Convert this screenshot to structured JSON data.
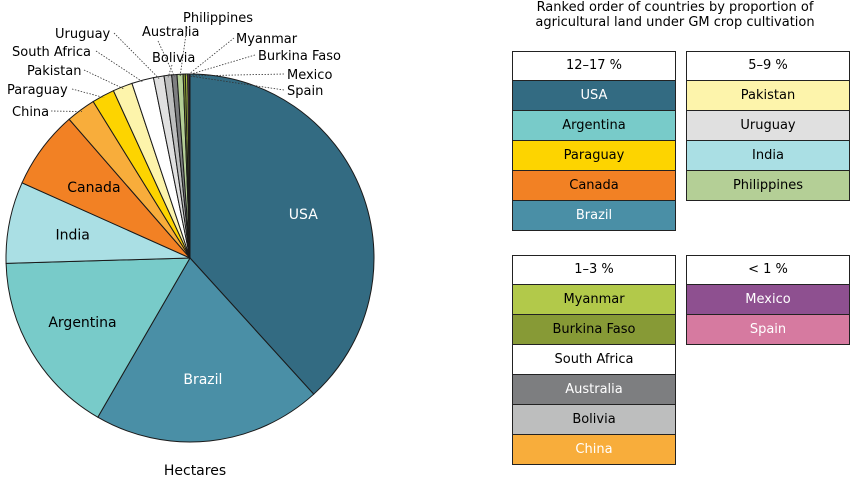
{
  "chart_data": {
    "type": "pie",
    "caption": "Hectares",
    "slices": [
      {
        "label": "USA",
        "value": 57.7,
        "color": "#336b82"
      },
      {
        "label": "Brazil",
        "value": 30.3,
        "color": "#4a8fa6"
      },
      {
        "label": "Argentina",
        "value": 24.4,
        "color": "#78cbc9"
      },
      {
        "label": "India",
        "value": 10.8,
        "color": "#aadfe4"
      },
      {
        "label": "Canada",
        "value": 10.4,
        "color": "#f28124"
      },
      {
        "label": "China",
        "value": 3.9,
        "color": "#f8ad3b"
      },
      {
        "label": "Paraguay",
        "value": 3.0,
        "color": "#fdd400"
      },
      {
        "label": "Pakistan",
        "value": 2.6,
        "color": "#fdf4ab"
      },
      {
        "label": "South Africa",
        "value": 2.9,
        "color": "#ffffff"
      },
      {
        "label": "Uruguay",
        "value": 1.4,
        "color": "#e0e0e0"
      },
      {
        "label": "Bolivia",
        "value": 1.0,
        "color": "#bdbebe"
      },
      {
        "label": "Australia",
        "value": 0.7,
        "color": "#7d7e80"
      },
      {
        "label": "Philippines",
        "value": 0.8,
        "color": "#b4cf96"
      },
      {
        "label": "Burkina Faso",
        "value": 0.3,
        "color": "#879a36"
      },
      {
        "label": "Myanmar",
        "value": 0.3,
        "color": "#b2c94a"
      },
      {
        "label": "Mexico",
        "value": 0.2,
        "color": "#8e5090"
      },
      {
        "label": "Spain",
        "value": 0.1,
        "color": "#d67aa0"
      }
    ],
    "inside_labels": [
      "USA",
      "Brazil",
      "Argentina",
      "India",
      "Canada"
    ],
    "outside_labels": [
      "China",
      "Paraguay",
      "Pakistan",
      "South Africa",
      "Uruguay",
      "Australia",
      "Bolivia",
      "Philippines",
      "Myanmar",
      "Burkina Faso",
      "Mexico",
      "Spain"
    ]
  },
  "legend": {
    "title_line1": "Ranked order of countries by proportion of",
    "title_line2": "agricultural land under GM crop cultivation",
    "groups": [
      {
        "heading": "12–17 %",
        "items": [
          {
            "label": "USA",
            "color": "#336b82",
            "text_color": "#ffffff"
          },
          {
            "label": "Argentina",
            "color": "#78cbc9",
            "text_color": "#000000"
          },
          {
            "label": "Paraguay",
            "color": "#fdd400",
            "text_color": "#000000"
          },
          {
            "label": "Canada",
            "color": "#f28124",
            "text_color": "#000000"
          },
          {
            "label": "Brazil",
            "color": "#4a8fa6",
            "text_color": "#ffffff"
          }
        ]
      },
      {
        "heading": "5–9 %",
        "items": [
          {
            "label": "Pakistan",
            "color": "#fdf4ab",
            "text_color": "#000000"
          },
          {
            "label": "Uruguay",
            "color": "#e0e0e0",
            "text_color": "#000000"
          },
          {
            "label": "India",
            "color": "#aadfe4",
            "text_color": "#000000"
          },
          {
            "label": "Philippines",
            "color": "#b4cf96",
            "text_color": "#000000"
          }
        ]
      },
      {
        "heading": "1–3 %",
        "items": [
          {
            "label": "Myanmar",
            "color": "#b2c94a",
            "text_color": "#000000"
          },
          {
            "label": "Burkina Faso",
            "color": "#879a36",
            "text_color": "#000000"
          },
          {
            "label": "South Africa",
            "color": "#ffffff",
            "text_color": "#000000"
          },
          {
            "label": "Australia",
            "color": "#7d7e80",
            "text_color": "#ffffff"
          },
          {
            "label": "Bolivia",
            "color": "#bdbebe",
            "text_color": "#000000"
          },
          {
            "label": "China",
            "color": "#f8ad3b",
            "text_color": "#ffffff"
          }
        ]
      },
      {
        "heading": "< 1 %",
        "items": [
          {
            "label": "Mexico",
            "color": "#8e5090",
            "text_color": "#ffffff"
          },
          {
            "label": "Spain",
            "color": "#d67aa0",
            "text_color": "#ffffff"
          }
        ]
      }
    ]
  }
}
